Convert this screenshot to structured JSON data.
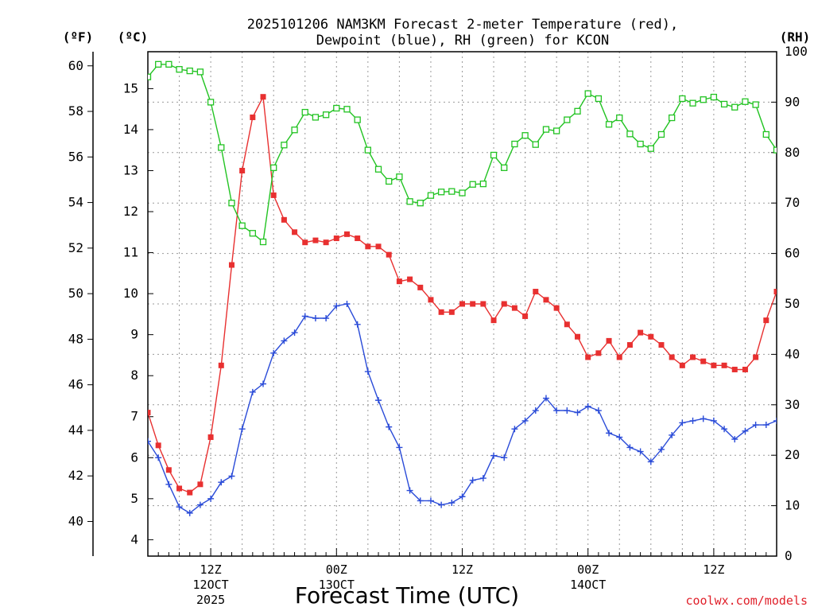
{
  "chart_data": {
    "type": "line",
    "title_line1": "2025101206 NAM3KM Forecast 2-meter Temperature (red),",
    "title_line2": "Dewpoint (blue), RH (green) for KCON",
    "unit_f": "(ºF)",
    "unit_c": "(ºC)",
    "unit_rh": "(RH)",
    "xlabel": "Forecast Time (UTC)",
    "credit": "coolwx.com/models",
    "x_unit": "forecast hour",
    "xlim": [
      0,
      60
    ],
    "ylim_c": [
      3.6,
      15.9
    ],
    "ylim_rh": [
      0,
      100
    ],
    "y_ticks_c": [
      "4",
      "5",
      "6",
      "7",
      "8",
      "9",
      "10",
      "11",
      "12",
      "13",
      "14",
      "15"
    ],
    "y_ticks_f": [
      "40",
      "42",
      "44",
      "46",
      "48",
      "50",
      "52",
      "54",
      "56",
      "58",
      "60"
    ],
    "y_ticks_rh": [
      "0",
      "10",
      "20",
      "30",
      "40",
      "50",
      "60",
      "70",
      "80",
      "90",
      "100"
    ],
    "x_ticks": [
      {
        "hour": 6,
        "label": "12Z",
        "sub1": "12OCT",
        "sub2": "2025"
      },
      {
        "hour": 18,
        "label": "00Z",
        "sub1": "13OCT",
        "sub2": ""
      },
      {
        "hour": 30,
        "label": "12Z",
        "sub1": "",
        "sub2": ""
      },
      {
        "hour": 42,
        "label": "00Z",
        "sub1": "14OCT",
        "sub2": ""
      },
      {
        "hour": 54,
        "label": "12Z",
        "sub1": "",
        "sub2": ""
      }
    ],
    "series": [
      {
        "name": "2-meter Temperature",
        "axis": "C",
        "color": "#e83030",
        "marker": "square-filled",
        "values": [
          7.1,
          6.3,
          5.7,
          5.25,
          5.15,
          5.35,
          6.5,
          8.25,
          10.7,
          13.0,
          14.3,
          14.8,
          12.4,
          11.8,
          11.5,
          11.25,
          11.3,
          11.25,
          11.35,
          11.45,
          11.35,
          11.15,
          11.15,
          10.95,
          10.3,
          10.35,
          10.15,
          9.85,
          9.55,
          9.55,
          9.75,
          9.75,
          9.75,
          9.35,
          9.75,
          9.65,
          9.45,
          10.05,
          9.85,
          9.65,
          9.25,
          8.95,
          8.45,
          8.55,
          8.85,
          8.45,
          8.75,
          9.05,
          8.95,
          8.75,
          8.45,
          8.25,
          8.45,
          8.35,
          8.25,
          8.25,
          8.15,
          8.15,
          8.45,
          9.35,
          10.05
        ]
      },
      {
        "name": "Dewpoint",
        "axis": "C",
        "color": "#2a4bd8",
        "marker": "plus",
        "values": [
          6.4,
          6.0,
          5.35,
          4.8,
          4.65,
          4.85,
          5.0,
          5.4,
          5.55,
          6.7,
          7.6,
          7.8,
          8.55,
          8.85,
          9.05,
          9.45,
          9.4,
          9.4,
          9.7,
          9.75,
          9.25,
          8.1,
          7.4,
          6.75,
          6.25,
          5.2,
          4.95,
          4.95,
          4.85,
          4.9,
          5.05,
          5.45,
          5.5,
          6.05,
          6.0,
          6.7,
          6.9,
          7.15,
          7.45,
          7.15,
          7.15,
          7.1,
          7.25,
          7.15,
          6.6,
          6.5,
          6.25,
          6.15,
          5.9,
          6.2,
          6.55,
          6.85,
          6.9,
          6.95,
          6.9,
          6.7,
          6.45,
          6.65,
          6.8,
          6.8,
          6.9
        ]
      },
      {
        "name": "RH",
        "axis": "RH",
        "color": "#22c322",
        "marker": "square-open",
        "values": [
          95,
          97.5,
          97.5,
          96.5,
          96.2,
          96,
          90,
          81,
          70,
          65.5,
          64,
          62.3,
          77,
          81.5,
          84.5,
          88,
          87,
          87.5,
          88.8,
          88.6,
          86.5,
          80.5,
          76.7,
          74.3,
          75.2,
          70.3,
          70,
          71.5,
          72.2,
          72.3,
          72,
          73.7,
          73.8,
          79.5,
          77,
          81.7,
          83.4,
          81.6,
          84.6,
          84.3,
          86.5,
          88.2,
          91.7,
          90.7,
          85.6,
          86.9,
          83.7,
          81.7,
          80.8,
          83.6,
          86.9,
          90.7,
          89.8,
          90.5,
          91,
          89.6,
          89,
          90.1,
          89.5,
          83.6,
          80.5
        ]
      }
    ]
  }
}
